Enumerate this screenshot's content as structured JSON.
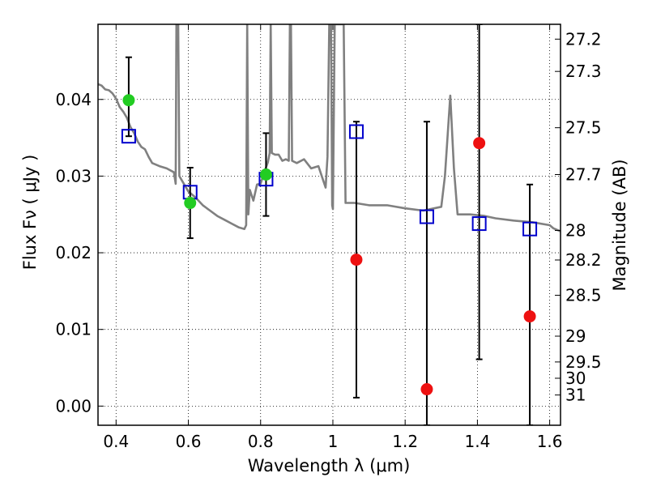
{
  "chart_data": {
    "type": "scatter",
    "title": "",
    "xlabel": "Wavelength  λ (μm)",
    "ylabel": "Flux  Fν  ( μJy )",
    "ylabel_right": "Magnitude (AB)",
    "xlim": [
      0.35,
      1.63
    ],
    "ylim": [
      -0.0025,
      0.0498
    ],
    "grid": true,
    "x_ticks": [
      0.4,
      0.6,
      0.8,
      1.0,
      1.2,
      1.4,
      1.6
    ],
    "x_tick_labels": [
      "0.4",
      "0.6",
      "0.8",
      "1",
      "1.2",
      "1.4",
      "1.6"
    ],
    "y_ticks": [
      0.0,
      0.01,
      0.02,
      0.03,
      0.04
    ],
    "y_tick_labels": [
      "0.00",
      "0.01",
      "0.02",
      "0.03",
      "0.04"
    ],
    "mag_ticks": [
      27.2,
      27.3,
      27.5,
      27.7,
      28,
      28.2,
      28.5,
      29,
      29.5,
      30,
      31
    ],
    "mag_tick_labels": [
      "27.2",
      "27.3",
      "27.5",
      "27.7",
      "28",
      "28.2",
      "28.5",
      "29",
      "29.5",
      "30",
      "31"
    ],
    "series": [
      {
        "name": "template SED",
        "kind": "line",
        "color": "#808080",
        "points": [
          [
            0.35,
            0.042
          ],
          [
            0.36,
            0.0418
          ],
          [
            0.37,
            0.0413
          ],
          [
            0.38,
            0.0412
          ],
          [
            0.39,
            0.0408
          ],
          [
            0.4,
            0.0401
          ],
          [
            0.41,
            0.039
          ],
          [
            0.42,
            0.0384
          ],
          [
            0.43,
            0.0376
          ],
          [
            0.44,
            0.0364
          ],
          [
            0.45,
            0.0356
          ],
          [
            0.46,
            0.0345
          ],
          [
            0.47,
            0.0338
          ],
          [
            0.48,
            0.0335
          ],
          [
            0.49,
            0.0325
          ],
          [
            0.5,
            0.0317
          ],
          [
            0.52,
            0.0313
          ],
          [
            0.54,
            0.031
          ],
          [
            0.56,
            0.0305
          ],
          [
            0.565,
            0.029
          ],
          [
            0.567,
            0.0498
          ],
          [
            0.572,
            0.0498
          ],
          [
            0.575,
            0.03
          ],
          [
            0.58,
            0.0296
          ],
          [
            0.6,
            0.028
          ],
          [
            0.62,
            0.0272
          ],
          [
            0.64,
            0.0262
          ],
          [
            0.66,
            0.0255
          ],
          [
            0.68,
            0.0248
          ],
          [
            0.7,
            0.0243
          ],
          [
            0.72,
            0.0238
          ],
          [
            0.74,
            0.0233
          ],
          [
            0.755,
            0.0231
          ],
          [
            0.76,
            0.0236
          ],
          [
            0.763,
            0.0498
          ],
          [
            0.766,
            0.025
          ],
          [
            0.77,
            0.0282
          ],
          [
            0.78,
            0.0268
          ],
          [
            0.79,
            0.0289
          ],
          [
            0.8,
            0.029
          ],
          [
            0.81,
            0.0305
          ],
          [
            0.82,
            0.0318
          ],
          [
            0.825,
            0.033
          ],
          [
            0.828,
            0.0498
          ],
          [
            0.831,
            0.033
          ],
          [
            0.84,
            0.0328
          ],
          [
            0.85,
            0.0328
          ],
          [
            0.86,
            0.032
          ],
          [
            0.87,
            0.0322
          ],
          [
            0.878,
            0.032
          ],
          [
            0.881,
            0.0498
          ],
          [
            0.884,
            0.0498
          ],
          [
            0.887,
            0.032
          ],
          [
            0.9,
            0.0317
          ],
          [
            0.92,
            0.0322
          ],
          [
            0.94,
            0.031
          ],
          [
            0.96,
            0.0313
          ],
          [
            0.98,
            0.0285
          ],
          [
            0.985,
            0.0325
          ],
          [
            0.99,
            0.0498
          ],
          [
            0.995,
            0.0498
          ],
          [
            0.998,
            0.0262
          ],
          [
            1.0,
            0.0257
          ],
          [
            1.005,
            0.0498
          ],
          [
            1.03,
            0.0498
          ],
          [
            1.035,
            0.0265
          ],
          [
            1.06,
            0.0265
          ],
          [
            1.1,
            0.0262
          ],
          [
            1.15,
            0.0262
          ],
          [
            1.2,
            0.0258
          ],
          [
            1.25,
            0.0255
          ],
          [
            1.28,
            0.0258
          ],
          [
            1.3,
            0.026
          ],
          [
            1.31,
            0.03
          ],
          [
            1.325,
            0.0405
          ],
          [
            1.335,
            0.031
          ],
          [
            1.345,
            0.025
          ],
          [
            1.38,
            0.025
          ],
          [
            1.42,
            0.0248
          ],
          [
            1.45,
            0.0245
          ],
          [
            1.5,
            0.0242
          ],
          [
            1.55,
            0.024
          ],
          [
            1.6,
            0.0236
          ],
          [
            1.61,
            0.0232
          ],
          [
            1.62,
            0.023
          ],
          [
            1.63,
            0.0228
          ]
        ]
      },
      {
        "name": "synthetic photometry",
        "kind": "square",
        "color": "#0000cc",
        "points": [
          [
            0.435,
            0.0352
          ],
          [
            0.605,
            0.0279
          ],
          [
            0.815,
            0.0296
          ],
          [
            1.065,
            0.0358
          ],
          [
            1.26,
            0.0247
          ],
          [
            1.405,
            0.0238
          ],
          [
            1.545,
            0.0231
          ]
        ]
      },
      {
        "name": "detections",
        "kind": "circle",
        "color": "#22cc22",
        "points": [
          [
            0.435,
            0.0399
          ],
          [
            0.605,
            0.0265
          ],
          [
            0.815,
            0.0302
          ]
        ]
      },
      {
        "name": "non-detections",
        "kind": "circle",
        "color": "#ee1111",
        "points": [
          [
            1.065,
            0.0191
          ],
          [
            1.26,
            0.0022
          ],
          [
            1.405,
            0.0343
          ],
          [
            1.545,
            0.0117
          ]
        ]
      },
      {
        "name": "errors",
        "kind": "errorbar",
        "color": "#000000",
        "bars": [
          [
            0.435,
            0.0352,
            0.0455
          ],
          [
            0.605,
            0.0219,
            0.0311
          ],
          [
            0.815,
            0.0248,
            0.0356
          ],
          [
            1.065,
            0.0011,
            0.0371
          ],
          [
            1.26,
            -0.0025,
            0.0371
          ],
          [
            1.405,
            0.0061,
            0.0498
          ],
          [
            1.545,
            -0.0025,
            0.0289
          ]
        ]
      }
    ]
  }
}
